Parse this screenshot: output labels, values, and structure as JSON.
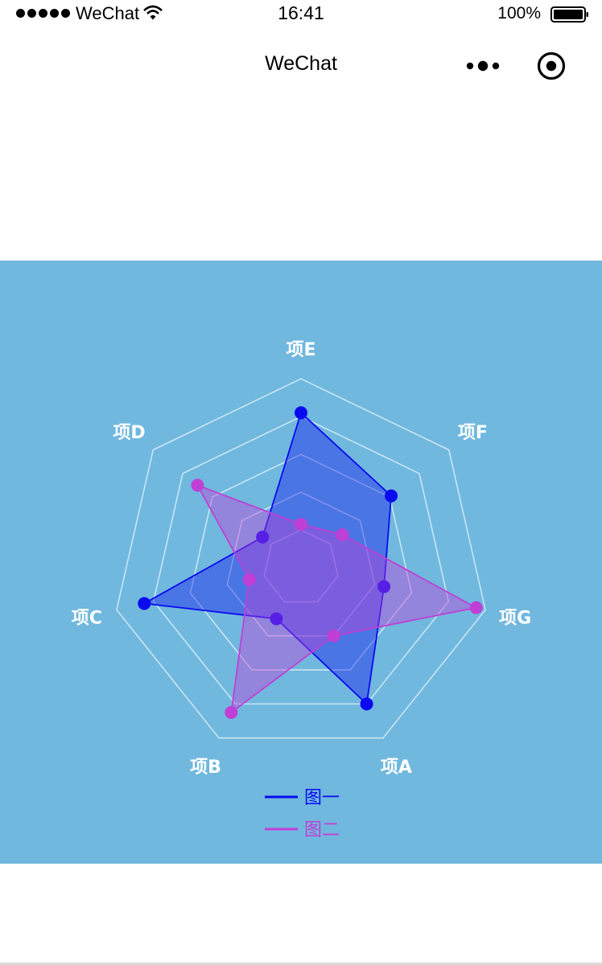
{
  "status_bar": {
    "carrier": "WeChat",
    "time": "16:41",
    "battery": "100%",
    "icons": [
      "signal-dots",
      "wifi-icon",
      "battery-icon"
    ]
  },
  "nav": {
    "title": "WeChat",
    "icons": [
      "more-icon",
      "target-icon"
    ]
  },
  "colors": {
    "panel_background": "#70b8de",
    "series_1": "#0a0af0",
    "series_2": "#c03fd6",
    "grid": "#d8ecf8"
  },
  "chart_data": {
    "type": "radar",
    "indicators": [
      "项A",
      "项B",
      "项C",
      "项D",
      "项E",
      "项F",
      "项G"
    ],
    "max": 100,
    "rings": 5,
    "series": [
      {
        "name": "图一",
        "values": [
          80,
          30,
          85,
          26,
          82,
          61,
          45
        ]
      },
      {
        "name": "图二",
        "values": [
          40,
          85,
          28,
          70,
          23,
          28,
          95
        ]
      }
    ],
    "legend_position": "bottom-center"
  }
}
